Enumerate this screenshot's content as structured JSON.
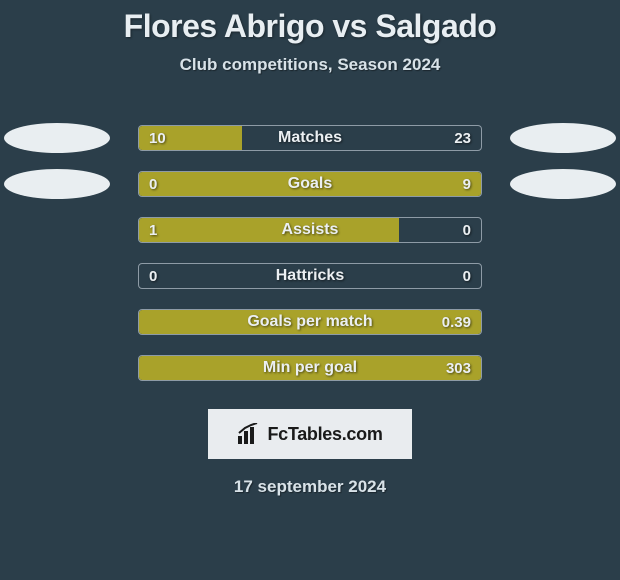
{
  "title": "Flores Abrigo vs Salgado",
  "subtitle": "Club competitions, Season 2024",
  "date": "17 september 2024",
  "logo_text": "FcTables.com",
  "colors": {
    "background": "#2b3e4a",
    "bar_fill": "#a9a22a",
    "bar_border": "#8e9ba6",
    "ellipse": "#e9eef1",
    "text": "#e8eef2",
    "logo_bg": "#e9ecef"
  },
  "side_ellipses_visible_rows": [
    0,
    1
  ],
  "stats": [
    {
      "label": "Matches",
      "left_val": "10",
      "right_val": "23",
      "fill_side": "left",
      "fill_pct": 30
    },
    {
      "label": "Goals",
      "left_val": "0",
      "right_val": "9",
      "fill_side": "full",
      "fill_pct": 100
    },
    {
      "label": "Assists",
      "left_val": "1",
      "right_val": "0",
      "fill_side": "left",
      "fill_pct": 76
    },
    {
      "label": "Hattricks",
      "left_val": "0",
      "right_val": "0",
      "fill_side": "none",
      "fill_pct": 0
    },
    {
      "label": "Goals per match",
      "left_val": "",
      "right_val": "0.39",
      "fill_side": "full",
      "fill_pct": 100
    },
    {
      "label": "Min per goal",
      "left_val": "",
      "right_val": "303",
      "fill_side": "full",
      "fill_pct": 100
    }
  ]
}
